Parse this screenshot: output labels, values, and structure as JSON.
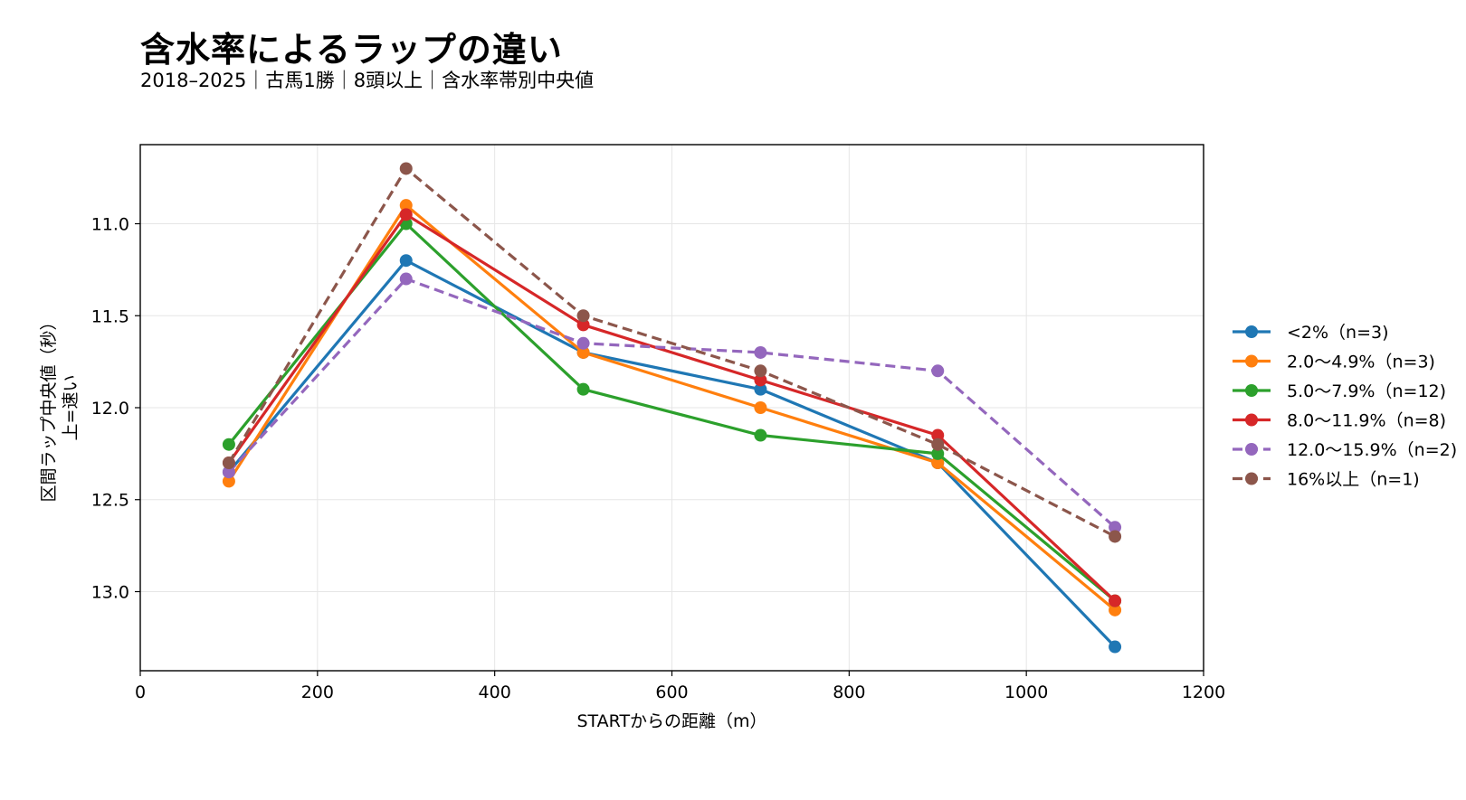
{
  "header": {
    "title": "含水率によるラップの違い",
    "subtitle": "2018–2025｜古馬1勝｜8頭以上｜含水率帯別中央値"
  },
  "chart_data": {
    "type": "line",
    "xlabel": "STARTからの距離（m）",
    "ylabel_lines": [
      "区間ラップ中央値（秒）",
      "上=速い"
    ],
    "xlim": [
      0,
      1200
    ],
    "ylim": [
      13.43,
      10.57
    ],
    "y_inverted": true,
    "xticks": [
      0,
      200,
      400,
      600,
      800,
      1000,
      1200
    ],
    "yticks": [
      11.0,
      11.5,
      12.0,
      12.5,
      13.0
    ],
    "ytick_labels": [
      "11.0",
      "11.5",
      "12.0",
      "12.5",
      "13.0"
    ],
    "grid": true,
    "legend_position": "right",
    "x": [
      100,
      300,
      500,
      700,
      900,
      1100
    ],
    "series": [
      {
        "name": "<2%（n=3)",
        "values": [
          12.35,
          11.2,
          11.7,
          11.9,
          12.3,
          13.3
        ],
        "color": "#1f77b4",
        "dashed": false
      },
      {
        "name": "2.0〜4.9%（n=3)",
        "values": [
          12.4,
          10.9,
          11.7,
          12.0,
          12.3,
          13.1
        ],
        "color": "#ff7f0e",
        "dashed": false
      },
      {
        "name": "5.0〜7.9%（n=12)",
        "values": [
          12.2,
          11.0,
          11.9,
          12.15,
          12.25,
          13.05
        ],
        "color": "#2ca02c",
        "dashed": false
      },
      {
        "name": "8.0〜11.9%（n=8)",
        "values": [
          12.3,
          10.95,
          11.55,
          11.85,
          12.15,
          13.05
        ],
        "color": "#d62728",
        "dashed": false
      },
      {
        "name": "12.0〜15.9%（n=2)",
        "values": [
          12.35,
          11.3,
          11.65,
          11.7,
          11.8,
          12.65
        ],
        "color": "#9467bd",
        "dashed": true
      },
      {
        "name": "16%以上（n=1)",
        "values": [
          12.3,
          10.7,
          11.5,
          11.8,
          12.2,
          12.7
        ],
        "color": "#8c564b",
        "dashed": true
      }
    ]
  }
}
